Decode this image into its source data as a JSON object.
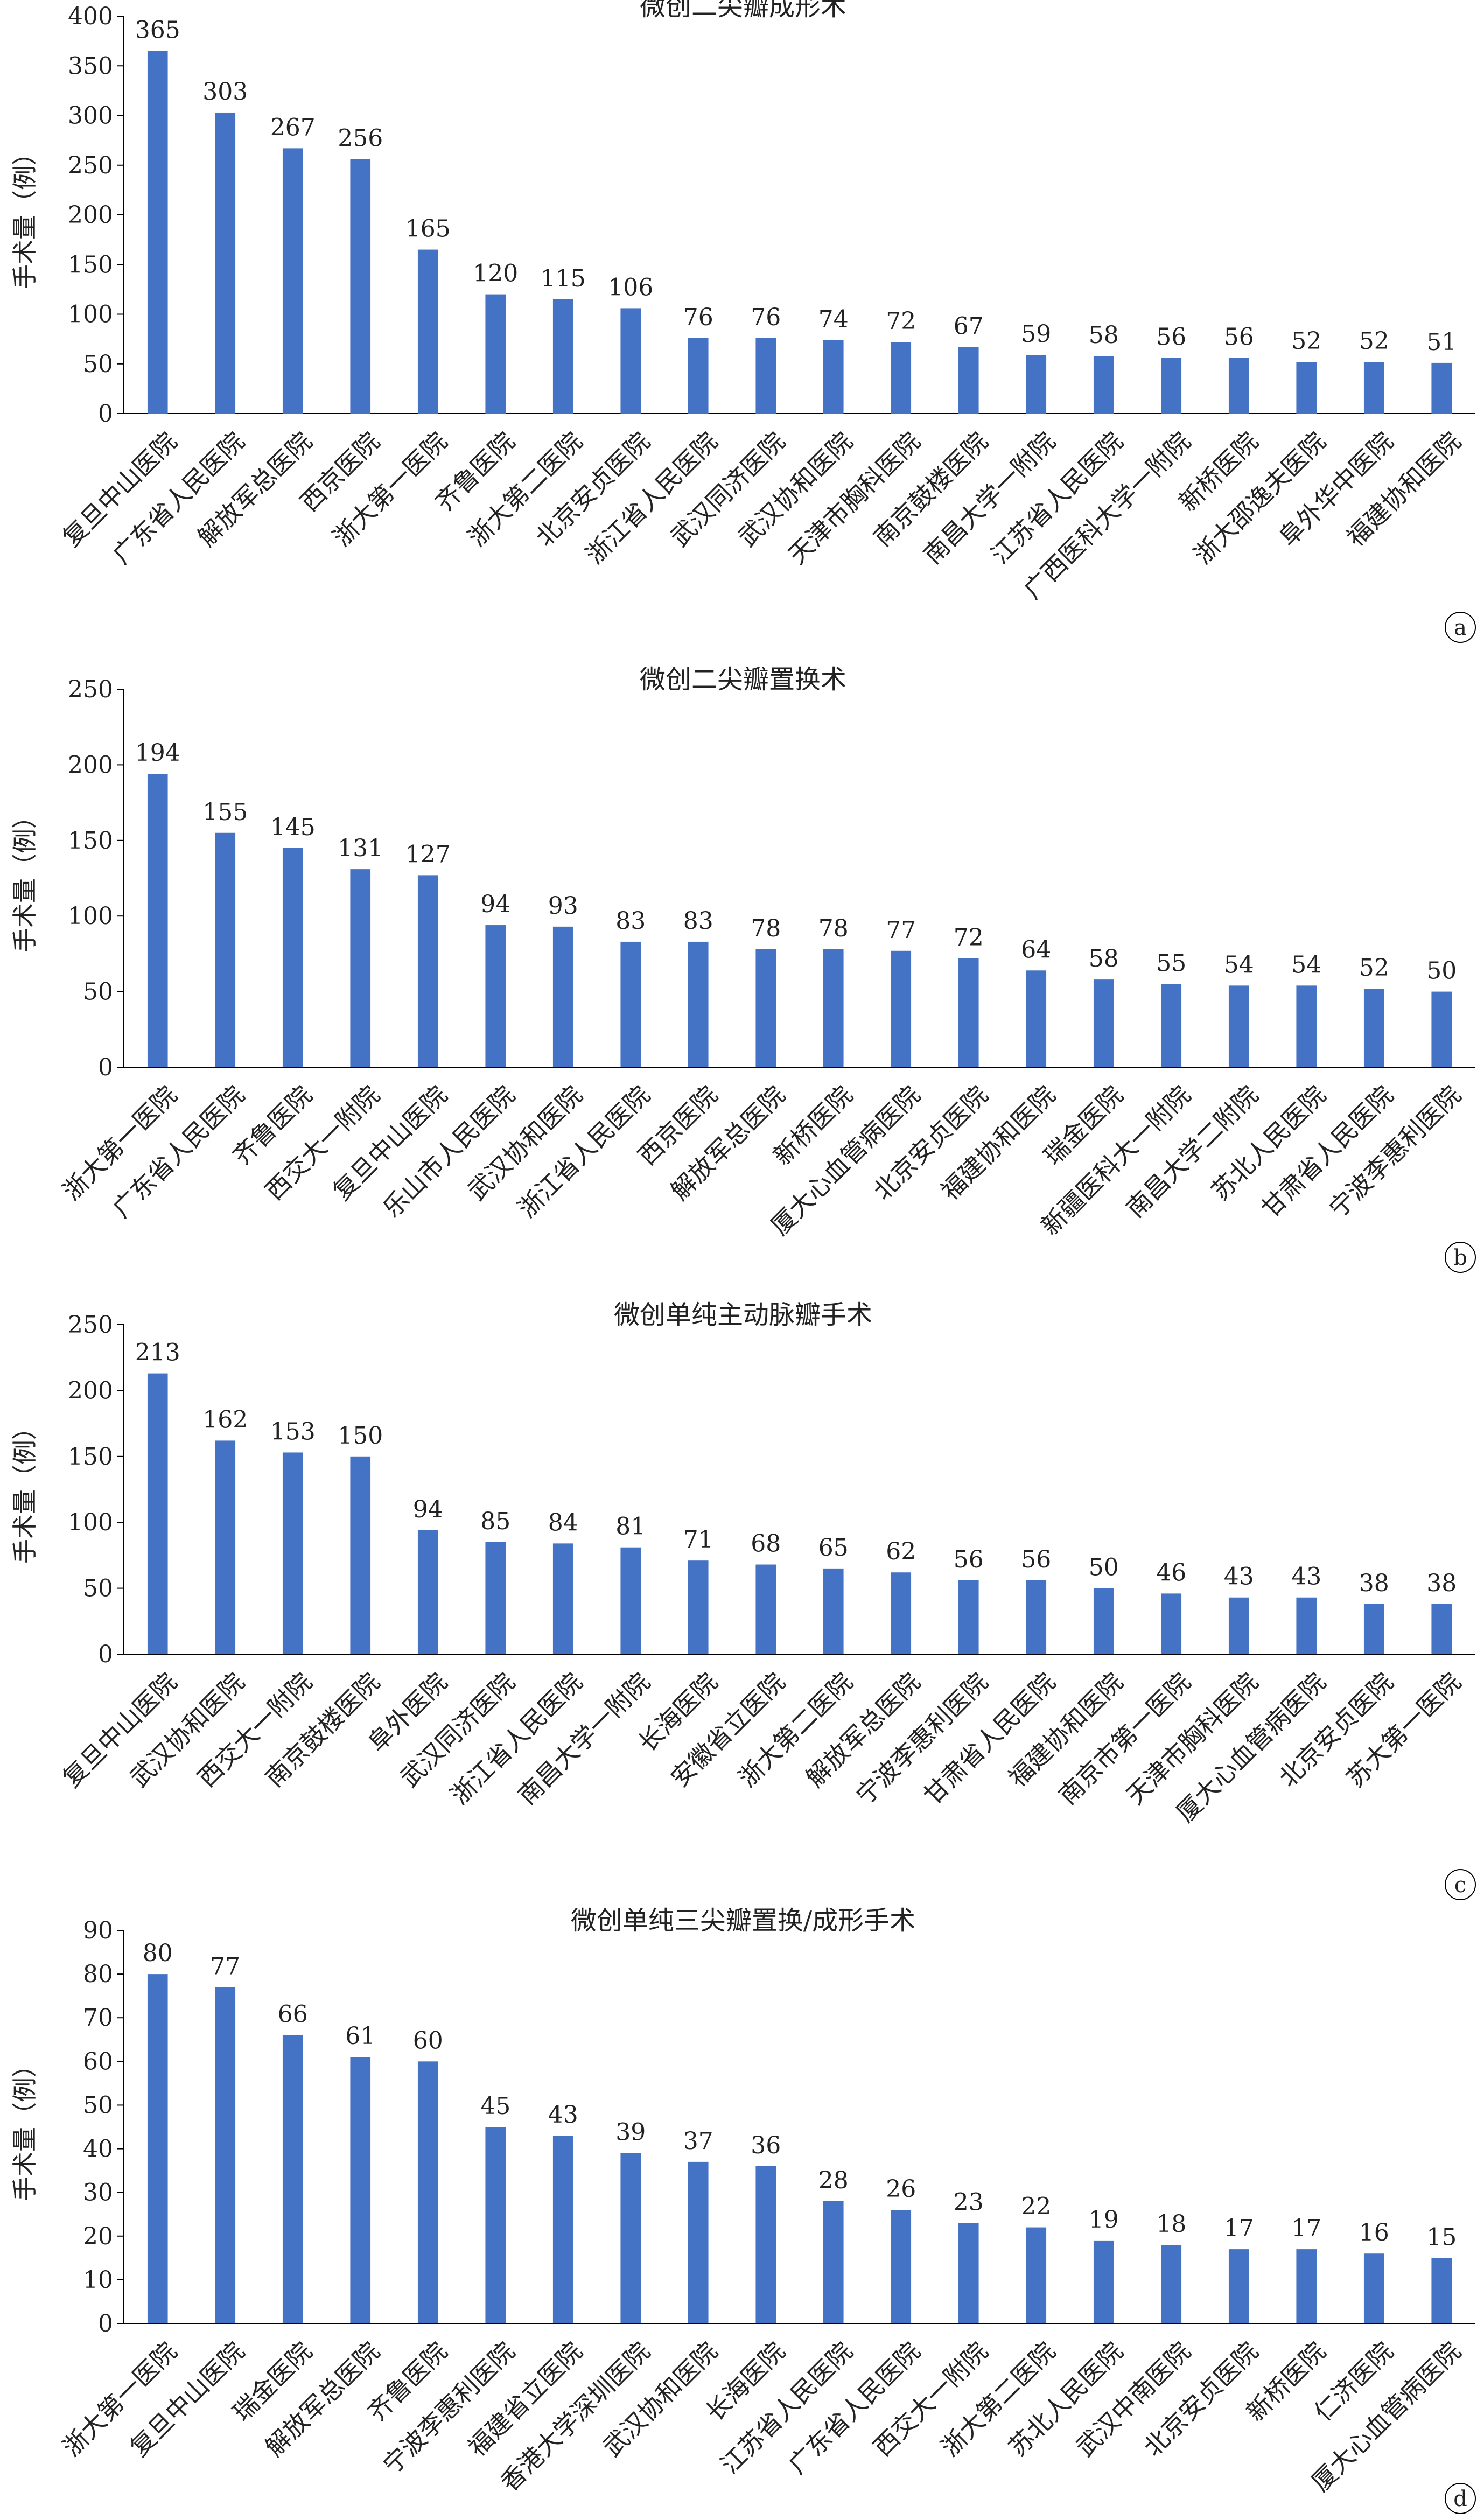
{
  "chart_data": [
    {
      "type": "bar",
      "panel_label": "a",
      "title": "微创二尖瓣成形术",
      "ylabel": "手术量（例）",
      "ylim": [
        0,
        400
      ],
      "yticks": [
        0,
        50,
        100,
        150,
        200,
        250,
        300,
        350,
        400
      ],
      "bar_color": "#4472C4",
      "categories": [
        "复旦中山医院",
        "广东省人民医院",
        "解放军总医院",
        "西京医院",
        "浙大第一医院",
        "齐鲁医院",
        "浙大第二医院",
        "北京安贞医院",
        "浙江省人民医院",
        "武汉同济医院",
        "武汉协和医院",
        "天津市胸科医院",
        "南京鼓楼医院",
        "南昌大学一附院",
        "江苏省人民医院",
        "广西医科大学一附院",
        "新桥医院",
        "浙大邵逸夫医院",
        "阜外华中医院",
        "福建协和医院"
      ],
      "values": [
        365,
        303,
        267,
        256,
        165,
        120,
        115,
        106,
        76,
        76,
        74,
        72,
        67,
        59,
        58,
        56,
        56,
        52,
        52,
        51
      ]
    },
    {
      "type": "bar",
      "panel_label": "b",
      "title": "微创二尖瓣置换术",
      "ylabel": "手术量（例）",
      "ylim": [
        0,
        250
      ],
      "yticks": [
        0,
        50,
        100,
        150,
        200,
        250
      ],
      "bar_color": "#4472C4",
      "categories": [
        "浙大第一医院",
        "广东省人民医院",
        "齐鲁医院",
        "西交大一附院",
        "复旦中山医院",
        "乐山市人民医院",
        "武汉协和医院",
        "浙江省人民医院",
        "西京医院",
        "解放军总医院",
        "新桥医院",
        "厦大心血管病医院",
        "北京安贞医院",
        "福建协和医院",
        "瑞金医院",
        "新疆医科大一附院",
        "南昌大学二附院",
        "苏北人民医院",
        "甘肃省人民医院",
        "宁波李惠利医院"
      ],
      "values": [
        194,
        155,
        145,
        131,
        127,
        94,
        93,
        83,
        83,
        78,
        78,
        77,
        72,
        64,
        58,
        55,
        54,
        54,
        52,
        50
      ]
    },
    {
      "type": "bar",
      "panel_label": "c",
      "title": "微创单纯主动脉瓣手术",
      "ylabel": "手术量（例）",
      "ylim": [
        0,
        250
      ],
      "yticks": [
        0,
        50,
        100,
        150,
        200,
        250
      ],
      "bar_color": "#4472C4",
      "categories": [
        "复旦中山医院",
        "武汉协和医院",
        "西交大一附院",
        "南京鼓楼医院",
        "阜外医院",
        "武汉同济医院",
        "浙江省人民医院",
        "南昌大学一附院",
        "长海医院",
        "安徽省立医院",
        "浙大第二医院",
        "解放军总医院",
        "宁波李惠利医院",
        "甘肃省人民医院",
        "福建协和医院",
        "南京市第一医院",
        "天津市胸科医院",
        "厦大心血管病医院",
        "北京安贞医院",
        "苏大第一医院"
      ],
      "values": [
        213,
        162,
        153,
        150,
        94,
        85,
        84,
        81,
        71,
        68,
        65,
        62,
        56,
        56,
        50,
        46,
        43,
        43,
        38,
        38
      ]
    },
    {
      "type": "bar",
      "panel_label": "d",
      "title": "微创单纯三尖瓣置换/成形手术",
      "ylabel": "手术量（例）",
      "ylim": [
        0,
        90
      ],
      "yticks": [
        0,
        10,
        20,
        30,
        40,
        50,
        60,
        70,
        80,
        90
      ],
      "bar_color": "#4472C4",
      "categories": [
        "浙大第一医院",
        "复旦中山医院",
        "瑞金医院",
        "解放军总医院",
        "齐鲁医院",
        "宁波李惠利医院",
        "福建省立医院",
        "香港大学深圳医院",
        "武汉协和医院",
        "长海医院",
        "江苏省人民医院",
        "广东省人民医院",
        "西交大一附院",
        "浙大第二医院",
        "苏北人民医院",
        "武汉中南医院",
        "北京安贞医院",
        "新桥医院",
        "仁济医院",
        "厦大心血管病医院"
      ],
      "values": [
        80,
        77,
        66,
        61,
        60,
        45,
        43,
        39,
        37,
        36,
        28,
        26,
        23,
        22,
        19,
        18,
        17,
        17,
        16,
        15
      ]
    }
  ]
}
